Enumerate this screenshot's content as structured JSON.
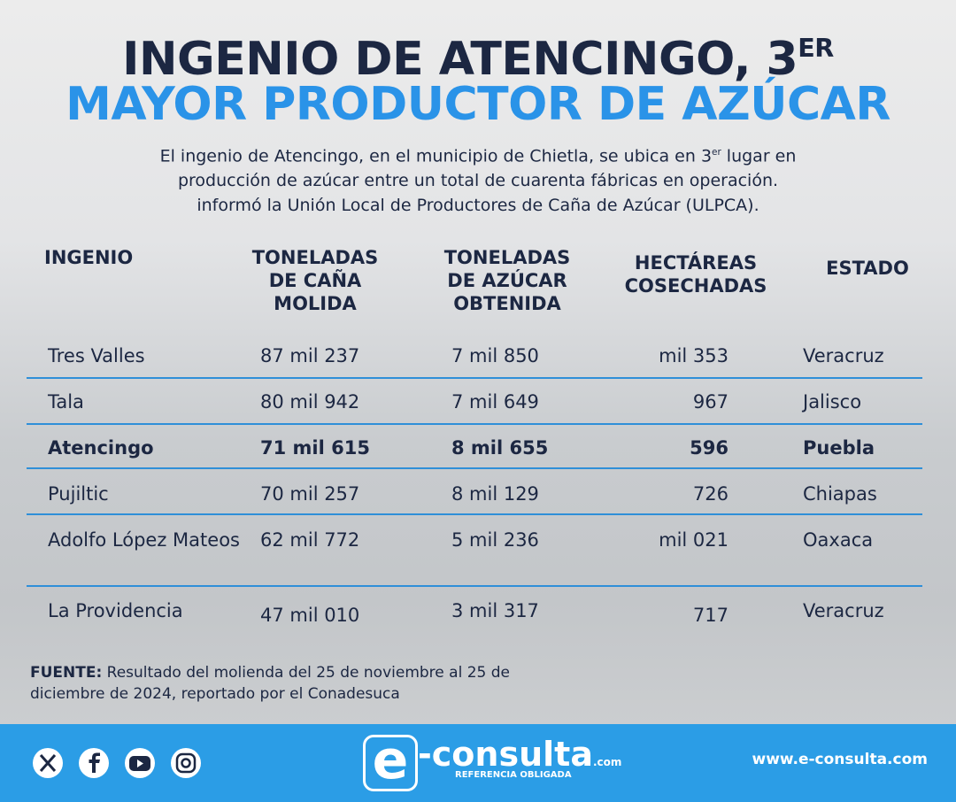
{
  "header": {
    "title_line1": "INGENIO DE ATENCINGO, 3",
    "title_sup": "ER",
    "title_line2": "MAYOR PRODUCTOR DE AZÚCAR"
  },
  "intro": {
    "line1_start": "El ingenio de Atencingo, en el municipio de Chietla, se ubica en 3",
    "line1_sup": "er",
    "line1_end": " lugar en",
    "line2": "producción de azúcar entre un total de cuarenta fábricas en operación.",
    "line3": "informó la Unión Local de Productores de Caña de Azúcar (ULPCA)."
  },
  "table": {
    "headers": [
      "INGENIO",
      "TONELADAS DE CAÑA MOLIDA",
      "TONELADAS DE AZÚCAR OBTENIDA",
      "HECTÁREAS COSECHADAS",
      "ESTADO"
    ],
    "rows": [
      [
        "Tres Valles",
        "87 mil 237",
        "7 mil 850",
        "mil 353",
        "Veracruz"
      ],
      [
        "Tala",
        "80 mil 942",
        "7 mil 649",
        "967",
        "Jalisco"
      ],
      [
        "Atencingo",
        "71 mil 615",
        "8 mil 655",
        "596",
        "Puebla"
      ],
      [
        "Pujiltic",
        "70 mil 257",
        "8 mil 129",
        "726",
        "Chiapas"
      ],
      [
        "Adolfo López Mateos",
        "62 mil 772",
        "5 mil 236",
        "mil 021",
        "Oaxaca"
      ],
      [
        "La Providencia",
        "47 mil 010",
        "3 mil 317",
        "717",
        "Veracruz"
      ]
    ]
  },
  "source": {
    "label": "FUENTE:",
    "text": " Resultado del molienda del 25 de noviembre al 25 de diciembre de 2024, reportado por el Conadesuca"
  },
  "footer": {
    "logo_mark": "e",
    "logo_name": "-consulta",
    "logo_tld": ".com",
    "tagline": "REFERENCIA OBLIGADA",
    "url": "www.e-consulta.com"
  }
}
